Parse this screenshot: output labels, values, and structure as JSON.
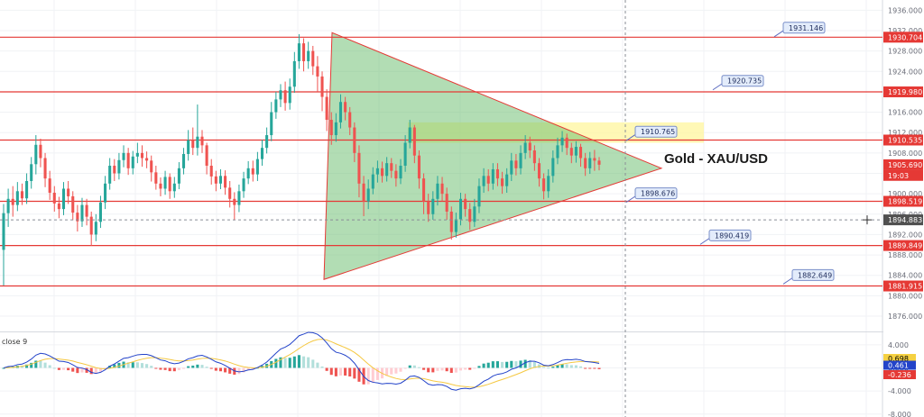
{
  "chart_data": {
    "type": "candlestick",
    "title": "Gold - XAU/USD",
    "price_axis": {
      "ylim": [
        1873,
        1938
      ],
      "ticks": [
        "1936.000",
        "1932.000",
        "1928.000",
        "1924.000",
        "1920.000",
        "1916.000",
        "1912.000",
        "1908.000",
        "1904.000",
        "1900.000",
        "1896.000",
        "1892.000",
        "1888.000",
        "1884.000",
        "1880.000",
        "1876.000"
      ]
    },
    "horizontal_levels": [
      1930.704,
      1919.98,
      1910.535,
      1898.519,
      1889.849,
      1881.915
    ],
    "level_labels": [
      {
        "text": "1931.146",
        "value": 1931.146
      },
      {
        "text": "1920.735",
        "value": 1920.735
      },
      {
        "text": "1910.765",
        "value": 1910.765
      },
      {
        "text": "1898.676",
        "value": 1898.676
      },
      {
        "text": "1890.419",
        "value": 1890.419
      },
      {
        "text": "1882.649",
        "value": 1882.649
      }
    ],
    "axis_badges": [
      {
        "text": "1930.704",
        "value": 1930.704,
        "color": "#e53935"
      },
      {
        "text": "1919.980",
        "value": 1919.98,
        "color": "#e53935"
      },
      {
        "text": "1910.535",
        "value": 1910.535,
        "color": "#e53935"
      },
      {
        "text": "1905.690",
        "value": 1905.69,
        "color": "#e53935"
      },
      {
        "text": "19:03",
        "value": 1903.6,
        "color": "#e53935"
      },
      {
        "text": "1898.519",
        "value": 1898.519,
        "color": "#e53935"
      },
      {
        "text": "1894.883",
        "value": 1894.883,
        "color": "#505050"
      },
      {
        "text": "1889.849",
        "value": 1889.849,
        "color": "#e53935"
      },
      {
        "text": "1881.915",
        "value": 1881.915,
        "color": "#e53935"
      }
    ],
    "triangle": {
      "apex_top": 1931.6,
      "apex_bottom": 1883.2,
      "apex_right": 1905.0
    },
    "highlight_zone": [
      1910.0,
      1914.0
    ],
    "macd": {
      "label": "close 9",
      "ylim": [
        -8.5,
        6
      ],
      "ticks": [
        "4.000",
        "0.000",
        "-4.000",
        "-8.000"
      ],
      "values": {
        "macd": 0.461,
        "signal": 0.698,
        "histogram": -0.236
      },
      "badges": [
        {
          "text": "0.698",
          "color": "#f5d142",
          "value": 0.698
        },
        {
          "text": "0.461",
          "color": "#2343c9",
          "value": 0.461
        },
        {
          "text": "-0.236",
          "color": "#e53935",
          "value": -0.236
        }
      ]
    },
    "colors": {
      "up": "#26a69a",
      "down": "#ef5350",
      "level": "#e53935",
      "triangle_fill": "#66bb6a",
      "zone": "#fff59d",
      "macd": "#2343c9",
      "signal": "#f5c842"
    },
    "candles": [
      [
        1889.0,
        1896.2,
        1882.0,
        1898.0
      ],
      [
        1896.2,
        1899.0,
        1893.5,
        1901.0
      ],
      [
        1899.0,
        1897.8,
        1895.5,
        1901.5
      ],
      [
        1897.8,
        1900.5,
        1896.6,
        1902.3
      ],
      [
        1900.5,
        1899.1,
        1897.8,
        1902.0
      ],
      [
        1899.1,
        1902.5,
        1898.0,
        1904.0
      ],
      [
        1902.5,
        1905.8,
        1901.0,
        1907.2
      ],
      [
        1905.8,
        1909.6,
        1903.8,
        1911.5
      ],
      [
        1909.6,
        1907.0,
        1905.2,
        1910.8
      ],
      [
        1907.0,
        1903.0,
        1901.3,
        1908.0
      ],
      [
        1903.0,
        1900.2,
        1898.8,
        1904.5
      ],
      [
        1900.2,
        1898.1,
        1896.5,
        1901.5
      ],
      [
        1898.1,
        1897.0,
        1895.2,
        1899.4
      ],
      [
        1897.0,
        1901.0,
        1895.8,
        1902.3
      ],
      [
        1901.0,
        1899.5,
        1898.0,
        1902.5
      ],
      [
        1899.5,
        1896.3,
        1894.8,
        1900.5
      ],
      [
        1896.3,
        1894.6,
        1892.6,
        1897.8
      ],
      [
        1894.6,
        1897.8,
        1893.5,
        1899.2
      ],
      [
        1897.8,
        1895.5,
        1893.8,
        1899.0
      ],
      [
        1895.5,
        1892.0,
        1889.8,
        1896.5
      ],
      [
        1892.0,
        1894.5,
        1890.7,
        1896.0
      ],
      [
        1894.5,
        1898.3,
        1893.3,
        1899.6
      ],
      [
        1898.3,
        1902.0,
        1897.0,
        1903.5
      ],
      [
        1902.0,
        1905.5,
        1900.8,
        1907.0
      ],
      [
        1905.5,
        1904.0,
        1902.5,
        1906.8
      ],
      [
        1904.0,
        1906.6,
        1902.8,
        1908.0
      ],
      [
        1906.6,
        1908.0,
        1905.2,
        1909.5
      ],
      [
        1908.0,
        1905.0,
        1903.7,
        1909.0
      ],
      [
        1905.0,
        1907.3,
        1903.8,
        1908.4
      ],
      [
        1907.3,
        1908.0,
        1906.0,
        1910.0
      ],
      [
        1908.0,
        1907.0,
        1905.3,
        1909.5
      ],
      [
        1907.0,
        1906.5,
        1905.0,
        1908.3
      ],
      [
        1906.5,
        1904.2,
        1902.4,
        1907.5
      ],
      [
        1904.2,
        1902.0,
        1900.8,
        1905.5
      ],
      [
        1902.0,
        1901.0,
        1899.5,
        1903.2
      ],
      [
        1901.0,
        1903.3,
        1899.8,
        1904.5
      ],
      [
        1903.3,
        1900.5,
        1899.0,
        1904.0
      ],
      [
        1900.5,
        1902.0,
        1899.2,
        1903.3
      ],
      [
        1902.0,
        1905.0,
        1900.9,
        1906.2
      ],
      [
        1905.0,
        1907.8,
        1903.8,
        1909.0
      ],
      [
        1907.8,
        1910.5,
        1906.5,
        1912.5
      ],
      [
        1910.5,
        1909.0,
        1907.6,
        1913.0
      ],
      [
        1909.0,
        1911.2,
        1907.5,
        1917.5
      ],
      [
        1911.2,
        1909.5,
        1908.0,
        1912.5
      ],
      [
        1909.5,
        1905.5,
        1903.8,
        1910.0
      ],
      [
        1905.5,
        1903.4,
        1901.8,
        1906.8
      ],
      [
        1903.4,
        1902.0,
        1900.5,
        1904.5
      ],
      [
        1902.0,
        1903.5,
        1900.9,
        1904.8
      ],
      [
        1903.5,
        1901.2,
        1899.8,
        1904.6
      ],
      [
        1901.2,
        1899.0,
        1897.3,
        1902.5
      ],
      [
        1899.0,
        1897.8,
        1894.8,
        1900.3
      ],
      [
        1897.8,
        1900.5,
        1896.4,
        1901.8
      ],
      [
        1900.5,
        1903.0,
        1899.2,
        1904.3
      ],
      [
        1903.0,
        1905.0,
        1901.9,
        1906.4
      ],
      [
        1905.0,
        1903.8,
        1902.4,
        1906.5
      ],
      [
        1903.8,
        1906.8,
        1902.5,
        1908.2
      ],
      [
        1906.8,
        1909.0,
        1905.5,
        1910.6
      ],
      [
        1909.0,
        1911.5,
        1907.9,
        1913.0
      ],
      [
        1911.5,
        1916.0,
        1910.3,
        1918.0
      ],
      [
        1916.0,
        1918.5,
        1914.7,
        1920.0
      ],
      [
        1918.5,
        1920.3,
        1917.0,
        1921.5
      ],
      [
        1920.3,
        1917.8,
        1916.3,
        1922.0
      ],
      [
        1917.8,
        1921.0,
        1916.5,
        1922.6
      ],
      [
        1921.0,
        1926.0,
        1919.8,
        1927.8
      ],
      [
        1926.0,
        1929.5,
        1924.5,
        1931.3
      ],
      [
        1929.5,
        1926.0,
        1924.0,
        1930.5
      ],
      [
        1926.0,
        1928.0,
        1924.5,
        1929.8
      ],
      [
        1928.0,
        1925.0,
        1923.3,
        1929.0
      ],
      [
        1925.0,
        1923.0,
        1920.0,
        1927.0
      ],
      [
        1923.0,
        1919.0,
        1916.2,
        1924.0
      ],
      [
        1919.0,
        1914.5,
        1912.3,
        1920.5
      ],
      [
        1914.5,
        1911.5,
        1909.6,
        1916.0
      ],
      [
        1911.5,
        1914.0,
        1910.2,
        1915.8
      ],
      [
        1914.0,
        1918.0,
        1912.8,
        1919.5
      ],
      [
        1918.0,
        1916.0,
        1914.4,
        1919.0
      ],
      [
        1916.0,
        1913.0,
        1911.5,
        1917.0
      ],
      [
        1913.0,
        1908.0,
        1906.2,
        1914.0
      ],
      [
        1908.0,
        1902.0,
        1899.3,
        1909.5
      ],
      [
        1902.0,
        1898.5,
        1895.6,
        1903.5
      ],
      [
        1898.5,
        1901.0,
        1897.0,
        1902.8
      ],
      [
        1901.0,
        1903.8,
        1899.9,
        1905.2
      ],
      [
        1903.8,
        1905.0,
        1902.2,
        1906.5
      ],
      [
        1905.0,
        1903.5,
        1902.2,
        1906.3
      ],
      [
        1903.5,
        1906.0,
        1902.4,
        1907.2
      ],
      [
        1906.0,
        1904.5,
        1903.1,
        1907.0
      ],
      [
        1904.5,
        1903.0,
        1901.4,
        1905.8
      ],
      [
        1903.0,
        1905.5,
        1901.9,
        1906.8
      ],
      [
        1905.5,
        1910.0,
        1904.3,
        1911.5
      ],
      [
        1910.0,
        1913.0,
        1908.9,
        1914.5
      ],
      [
        1913.0,
        1907.5,
        1906.0,
        1913.5
      ],
      [
        1907.5,
        1903.0,
        1901.0,
        1908.5
      ],
      [
        1903.0,
        1898.5,
        1896.0,
        1904.0
      ],
      [
        1898.5,
        1896.0,
        1894.5,
        1900.0
      ],
      [
        1896.0,
        1899.0,
        1894.9,
        1900.5
      ],
      [
        1899.0,
        1902.0,
        1897.7,
        1903.5
      ],
      [
        1902.0,
        1900.0,
        1898.5,
        1903.3
      ],
      [
        1900.0,
        1896.5,
        1894.9,
        1901.2
      ],
      [
        1896.5,
        1892.5,
        1891.0,
        1897.5
      ],
      [
        1892.5,
        1895.0,
        1891.4,
        1896.3
      ],
      [
        1895.0,
        1899.0,
        1893.8,
        1900.2
      ],
      [
        1899.0,
        1897.0,
        1895.5,
        1900.0
      ],
      [
        1897.0,
        1894.5,
        1892.9,
        1898.2
      ],
      [
        1894.5,
        1897.5,
        1893.5,
        1899.0
      ],
      [
        1897.5,
        1901.5,
        1896.2,
        1903.0
      ],
      [
        1901.5,
        1903.5,
        1900.2,
        1905.0
      ],
      [
        1903.5,
        1902.0,
        1900.5,
        1904.8
      ],
      [
        1902.0,
        1904.8,
        1900.8,
        1906.0
      ],
      [
        1904.8,
        1903.0,
        1901.5,
        1906.0
      ],
      [
        1903.0,
        1901.5,
        1900.0,
        1904.3
      ],
      [
        1901.5,
        1903.8,
        1900.2,
        1905.0
      ],
      [
        1903.8,
        1906.5,
        1902.5,
        1908.0
      ],
      [
        1906.5,
        1905.0,
        1903.6,
        1907.8
      ],
      [
        1905.0,
        1908.0,
        1903.8,
        1909.5
      ],
      [
        1908.0,
        1910.0,
        1906.8,
        1911.5
      ],
      [
        1910.0,
        1908.5,
        1907.0,
        1911.2
      ],
      [
        1908.5,
        1906.0,
        1904.5,
        1909.5
      ],
      [
        1906.0,
        1903.0,
        1901.4,
        1907.0
      ],
      [
        1903.0,
        1900.5,
        1898.9,
        1904.0
      ],
      [
        1900.5,
        1903.5,
        1899.2,
        1904.8
      ],
      [
        1903.5,
        1907.0,
        1902.2,
        1908.5
      ],
      [
        1907.0,
        1909.5,
        1905.8,
        1911.0
      ],
      [
        1909.5,
        1911.0,
        1908.2,
        1912.3
      ],
      [
        1911.0,
        1909.0,
        1907.6,
        1911.8
      ],
      [
        1909.0,
        1907.5,
        1906.0,
        1910.0
      ],
      [
        1907.5,
        1909.2,
        1906.1,
        1910.3
      ],
      [
        1909.2,
        1907.0,
        1905.3,
        1909.8
      ],
      [
        1907.0,
        1905.0,
        1903.5,
        1908.0
      ],
      [
        1905.0,
        1907.0,
        1903.9,
        1908.2
      ],
      [
        1907.0,
        1906.5,
        1904.5,
        1908.6
      ],
      [
        1906.5,
        1905.7,
        1904.6,
        1907.2
      ]
    ]
  }
}
